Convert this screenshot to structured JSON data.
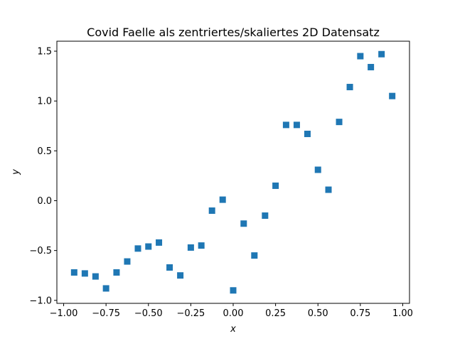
{
  "chart_data": {
    "type": "scatter",
    "title": "Covid Faelle als zentriertes/skaliertes 2D Datensatz",
    "xlabel": "x",
    "ylabel": "y",
    "xlim": [
      -1.04,
      1.04
    ],
    "ylim": [
      -1.03,
      1.6
    ],
    "xticks": [
      -1.0,
      -0.75,
      -0.5,
      -0.25,
      0.0,
      0.25,
      0.5,
      0.75,
      1.0
    ],
    "xtick_labels": [
      "−1.00",
      "−0.75",
      "−0.50",
      "−0.25",
      "0.00",
      "0.25",
      "0.50",
      "0.75",
      "1.00"
    ],
    "yticks": [
      -1.0,
      -0.5,
      0.0,
      0.5,
      1.0,
      1.5
    ],
    "ytick_labels": [
      "−1.0",
      "−0.5",
      "0.0",
      "0.5",
      "1.0",
      "1.5"
    ],
    "grid": false,
    "marker": "square",
    "color": "#1f77b4",
    "series": [
      {
        "x": [
          -0.938,
          -0.875,
          -0.812,
          -0.75,
          -0.688,
          -0.625,
          -0.562,
          -0.5,
          -0.438,
          -0.375,
          -0.312,
          -0.25,
          -0.188,
          -0.125,
          -0.062,
          0.0,
          0.062,
          0.125,
          0.188,
          0.25,
          0.312,
          0.375,
          0.438,
          0.5,
          0.562,
          0.625,
          0.688,
          0.75,
          0.812,
          0.875,
          0.938
        ],
        "y": [
          -0.72,
          -0.73,
          -0.76,
          -0.88,
          -0.72,
          -0.61,
          -0.48,
          -0.46,
          -0.42,
          -0.67,
          -0.75,
          -0.47,
          -0.45,
          -0.1,
          0.01,
          -0.9,
          -0.23,
          -0.55,
          -0.15,
          0.15,
          0.76,
          0.76,
          0.67,
          0.31,
          0.11,
          0.79,
          1.14,
          1.45,
          1.34,
          1.47,
          1.05
        ]
      }
    ]
  }
}
